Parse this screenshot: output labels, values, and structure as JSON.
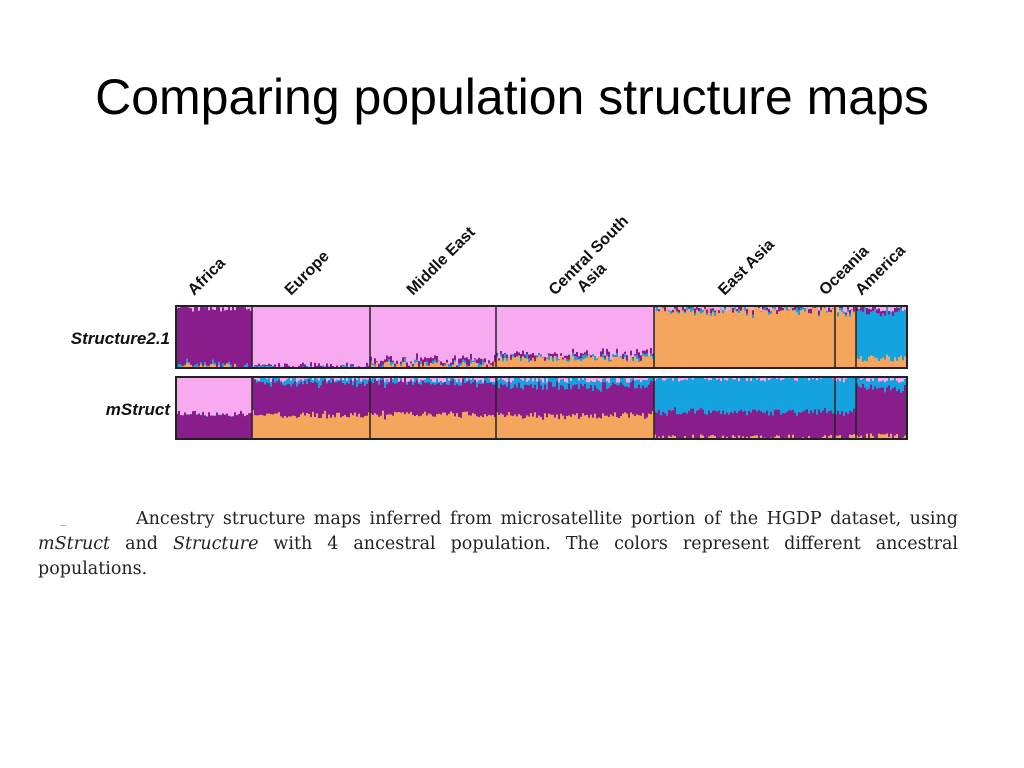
{
  "slide": {
    "title": "Comparing population structure maps"
  },
  "caption": {
    "part1": "Ancestry structure maps inferred from microsatellite portion of the HGDP dataset, using ",
    "method1": "mStruct",
    "part2": " and ",
    "method2": "Structure",
    "part3": " with 4 ancestral population. The colors represent different ancestral populations."
  },
  "colors": {
    "purple": "#8a1d8c",
    "pink": "#f7aaf0",
    "orange": "#f6a55c",
    "cyan": "#14a3de"
  },
  "chart_data": {
    "type": "stacked-bar",
    "regions": [
      "Africa",
      "Europe",
      "Middle East",
      "Central South Asia",
      "East Asia",
      "Oceania",
      "America"
    ],
    "region_widths": [
      76,
      118,
      126,
      158,
      181,
      21,
      51
    ],
    "components": [
      "purple",
      "pink",
      "orange",
      "cyan"
    ],
    "rows": [
      {
        "label": "Structure2.1",
        "proportions": [
          [
            0.92,
            0.03,
            0.03,
            0.02
          ],
          [
            0.02,
            0.96,
            0.01,
            0.01
          ],
          [
            0.06,
            0.86,
            0.06,
            0.02
          ],
          [
            0.04,
            0.78,
            0.16,
            0.02
          ],
          [
            0.02,
            0.03,
            0.93,
            0.02
          ],
          [
            0.02,
            0.06,
            0.9,
            0.02
          ],
          [
            0.04,
            0.05,
            0.16,
            0.75
          ]
        ]
      },
      {
        "label": "mStruct",
        "proportions": [
          [
            0.4,
            0.6,
            0.0,
            0.0
          ],
          [
            0.52,
            0.03,
            0.38,
            0.07
          ],
          [
            0.52,
            0.03,
            0.4,
            0.05
          ],
          [
            0.48,
            0.04,
            0.38,
            0.1
          ],
          [
            0.42,
            0.02,
            0.02,
            0.54
          ],
          [
            0.4,
            0.02,
            0.03,
            0.55
          ],
          [
            0.78,
            0.04,
            0.04,
            0.14
          ]
        ]
      }
    ]
  }
}
